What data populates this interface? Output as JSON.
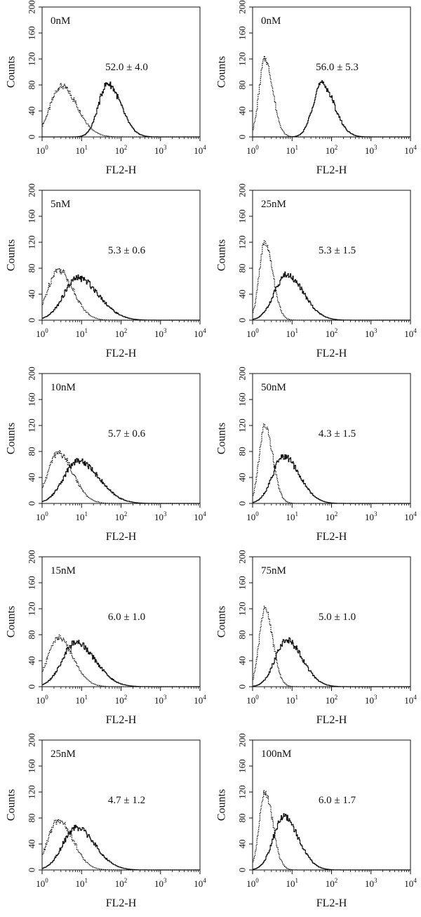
{
  "figure": {
    "x_axis_label": "FL2-H",
    "y_axis_label": "Counts",
    "x_ticks": [
      "10",
      "10",
      "10",
      "10",
      "10"
    ],
    "x_tick_exponents": [
      "0",
      "1",
      "2",
      "3",
      "4"
    ],
    "y_ticks": [
      "0",
      "40",
      "80",
      "120",
      "160",
      "200"
    ]
  },
  "panels": [
    {
      "concentration": "0nM",
      "mfi_label": "52.0 ± 4.0"
    },
    {
      "concentration": "0nM",
      "mfi_label": "56.0 ± 5.3"
    },
    {
      "concentration": "5nM",
      "mfi_label": "5.3 ± 0.6"
    },
    {
      "concentration": "25nM",
      "mfi_label": "5.3 ± 1.5"
    },
    {
      "concentration": "10nM",
      "mfi_label": "5.7 ± 0.6"
    },
    {
      "concentration": "50nM",
      "mfi_label": "4.3 ± 1.5"
    },
    {
      "concentration": "15nM",
      "mfi_label": "6.0 ± 1.0"
    },
    {
      "concentration": "75nM",
      "mfi_label": "5.0 ± 1.0"
    },
    {
      "concentration": "25nM",
      "mfi_label": "4.7 ± 1.2"
    },
    {
      "concentration": "100nM",
      "mfi_label": "6.0 ± 1.7"
    }
  ],
  "chart_data": [
    {
      "type": "line",
      "xscale": "log",
      "xlim": [
        1,
        10000
      ],
      "ylim": [
        0,
        200
      ],
      "xlabel": "FL2-H",
      "ylabel": "Counts",
      "annotation": "0nM",
      "value_label": "52.0 ± 4.0",
      "series": [
        {
          "style": "dotted",
          "peak_x": 3,
          "peak_y": 78,
          "width": 0.28
        },
        {
          "style": "solid",
          "peak_x": 45,
          "peak_y": 82,
          "width": 0.23
        }
      ]
    },
    {
      "type": "line",
      "xscale": "log",
      "xlim": [
        1,
        10000
      ],
      "ylim": [
        0,
        200
      ],
      "xlabel": "FL2-H",
      "ylabel": "Counts",
      "annotation": "0nM",
      "value_label": "56.0 ± 5.3",
      "series": [
        {
          "style": "dotted",
          "peak_x": 2,
          "peak_y": 120,
          "width": 0.14
        },
        {
          "style": "solid",
          "peak_x": 55,
          "peak_y": 82,
          "width": 0.22
        }
      ]
    },
    {
      "type": "line",
      "xscale": "log",
      "xlim": [
        1,
        10000
      ],
      "ylim": [
        0,
        200
      ],
      "xlabel": "FL2-H",
      "ylabel": "Counts",
      "annotation": "5nM",
      "value_label": "5.3 ± 0.6",
      "series": [
        {
          "style": "dotted",
          "peak_x": 2.5,
          "peak_y": 78,
          "width": 0.26
        },
        {
          "style": "solid",
          "peak_x": 8,
          "peak_y": 65,
          "width": 0.36
        }
      ]
    },
    {
      "type": "line",
      "xscale": "log",
      "xlim": [
        1,
        10000
      ],
      "ylim": [
        0,
        200
      ],
      "xlabel": "FL2-H",
      "ylabel": "Counts",
      "annotation": "25nM",
      "value_label": "5.3 ± 1.5",
      "series": [
        {
          "style": "dotted",
          "peak_x": 2,
          "peak_y": 120,
          "width": 0.14
        },
        {
          "style": "solid",
          "peak_x": 7,
          "peak_y": 70,
          "width": 0.3
        }
      ]
    },
    {
      "type": "line",
      "xscale": "log",
      "xlim": [
        1,
        10000
      ],
      "ylim": [
        0,
        200
      ],
      "xlabel": "FL2-H",
      "ylabel": "Counts",
      "annotation": "10nM",
      "value_label": "5.7 ± 0.6",
      "series": [
        {
          "style": "dotted",
          "peak_x": 2.5,
          "peak_y": 78,
          "width": 0.26
        },
        {
          "style": "solid",
          "peak_x": 8,
          "peak_y": 66,
          "width": 0.36
        }
      ]
    },
    {
      "type": "line",
      "xscale": "log",
      "xlim": [
        1,
        10000
      ],
      "ylim": [
        0,
        200
      ],
      "xlabel": "FL2-H",
      "ylabel": "Counts",
      "annotation": "50nM",
      "value_label": "4.3 ± 1.5",
      "series": [
        {
          "style": "dotted",
          "peak_x": 2,
          "peak_y": 120,
          "width": 0.14
        },
        {
          "style": "solid",
          "peak_x": 6,
          "peak_y": 72,
          "width": 0.28
        }
      ]
    },
    {
      "type": "line",
      "xscale": "log",
      "xlim": [
        1,
        10000
      ],
      "ylim": [
        0,
        200
      ],
      "xlabel": "FL2-H",
      "ylabel": "Counts",
      "annotation": "15nM",
      "value_label": "6.0 ± 1.0",
      "series": [
        {
          "style": "dotted",
          "peak_x": 2.5,
          "peak_y": 76,
          "width": 0.26
        },
        {
          "style": "solid",
          "peak_x": 7,
          "peak_y": 68,
          "width": 0.34
        }
      ]
    },
    {
      "type": "line",
      "xscale": "log",
      "xlim": [
        1,
        10000
      ],
      "ylim": [
        0,
        200
      ],
      "xlabel": "FL2-H",
      "ylabel": "Counts",
      "annotation": "75nM",
      "value_label": "5.0 ± 1.0",
      "series": [
        {
          "style": "dotted",
          "peak_x": 2,
          "peak_y": 120,
          "width": 0.14
        },
        {
          "style": "solid",
          "peak_x": 7,
          "peak_y": 72,
          "width": 0.28
        }
      ]
    },
    {
      "type": "line",
      "xscale": "log",
      "xlim": [
        1,
        10000
      ],
      "ylim": [
        0,
        200
      ],
      "xlabel": "FL2-H",
      "ylabel": "Counts",
      "annotation": "25nM",
      "value_label": "4.7 ± 1.2",
      "series": [
        {
          "style": "dotted",
          "peak_x": 2.5,
          "peak_y": 76,
          "width": 0.26
        },
        {
          "style": "solid",
          "peak_x": 7,
          "peak_y": 65,
          "width": 0.33
        }
      ]
    },
    {
      "type": "line",
      "xscale": "log",
      "xlim": [
        1,
        10000
      ],
      "ylim": [
        0,
        200
      ],
      "xlabel": "FL2-H",
      "ylabel": "Counts",
      "annotation": "100nM",
      "value_label": "6.0 ± 1.7",
      "series": [
        {
          "style": "dotted",
          "peak_x": 2,
          "peak_y": 120,
          "width": 0.14
        },
        {
          "style": "solid",
          "peak_x": 6,
          "peak_y": 82,
          "width": 0.26
        }
      ]
    }
  ]
}
